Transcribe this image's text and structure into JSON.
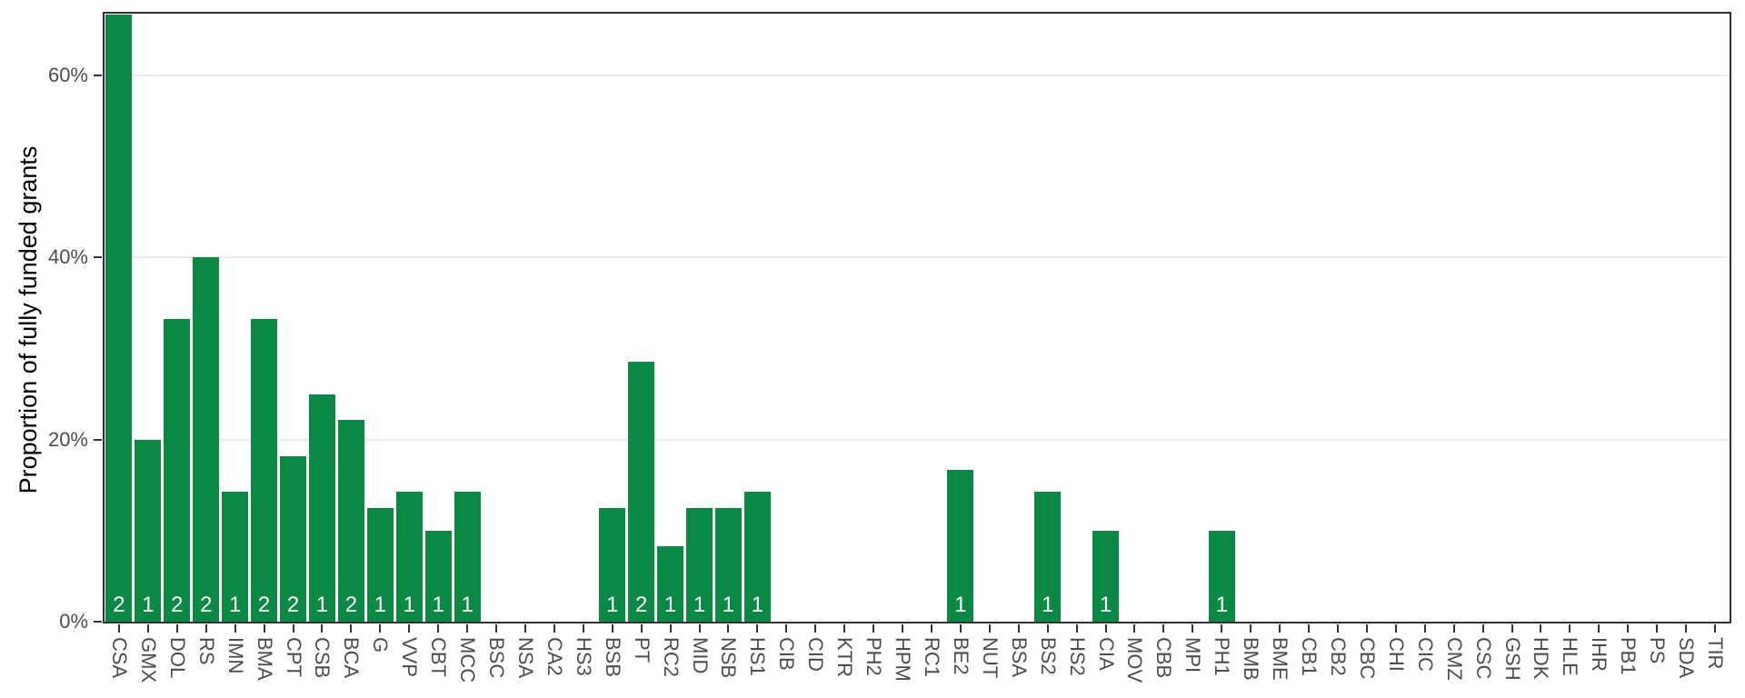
{
  "chart_data": {
    "type": "bar",
    "title": "",
    "xlabel": "",
    "ylabel": "Proportion of fully funded grants",
    "ylim": [
      0,
      66.8
    ],
    "grid": "horizontal-major-only",
    "legend": "none",
    "yticks": [
      {
        "value": 0,
        "label": "0%"
      },
      {
        "value": 20,
        "label": "20%"
      },
      {
        "value": 40,
        "label": "40%"
      },
      {
        "value": 60,
        "label": "60%"
      }
    ],
    "gridline_values": [
      20,
      40,
      60
    ],
    "bar_color": "#098944",
    "count_label_color": "#ffffff",
    "axis_line_color": "#333333",
    "tick_label_color": "#4d4d4d",
    "gridline_color": "#ebebeb",
    "categories": [
      "CSA",
      "GMX",
      "DOL",
      "RS",
      "IMN",
      "BMA",
      "CPT",
      "CSB",
      "BCA",
      "G",
      "VVP",
      "CBT",
      "MCC",
      "BSC",
      "NSA",
      "CA2",
      "HS3",
      "BSB",
      "PT",
      "RC2",
      "MID",
      "NSB",
      "HS1",
      "CIB",
      "CID",
      "KTR",
      "PH2",
      "HPM",
      "RC1",
      "BE2",
      "NUT",
      "BSA",
      "BS2",
      "HS2",
      "CIA",
      "MOV",
      "CBB",
      "MPI",
      "PH1",
      "BMB",
      "BME",
      "CB1",
      "CB2",
      "CBC",
      "CHI",
      "CIC",
      "CMZ",
      "CSC",
      "GSH",
      "HDK",
      "HLE",
      "IHR",
      "PB1",
      "PS",
      "SDA",
      "TIR"
    ],
    "values": [
      66.7,
      20.0,
      33.3,
      40.0,
      14.3,
      33.3,
      18.2,
      25.0,
      22.2,
      12.5,
      14.3,
      10.0,
      14.3,
      0,
      0,
      0,
      0,
      12.5,
      28.6,
      8.3,
      12.5,
      12.5,
      14.3,
      0,
      0,
      0,
      0,
      0,
      0,
      16.7,
      0,
      0,
      14.3,
      0,
      10.0,
      0,
      0,
      0,
      10.0,
      0,
      0,
      0,
      0,
      0,
      0,
      0,
      0,
      0,
      0,
      0,
      0,
      0,
      0,
      0,
      0,
      0
    ],
    "bar_count_labels": [
      "2",
      "1",
      "2",
      "2",
      "1",
      "2",
      "2",
      "1",
      "2",
      "1",
      "1",
      "1",
      "1",
      "",
      "",
      "",
      "",
      "1",
      "2",
      "1",
      "1",
      "1",
      "1",
      "",
      "",
      "",
      "",
      "",
      "",
      "1",
      "",
      "",
      "1",
      "",
      "1",
      "",
      "",
      "",
      "1",
      "",
      "",
      "",
      "",
      "",
      "",
      "",
      "",
      "",
      "",
      "",
      "",
      "",
      "",
      "",
      "",
      ""
    ]
  }
}
